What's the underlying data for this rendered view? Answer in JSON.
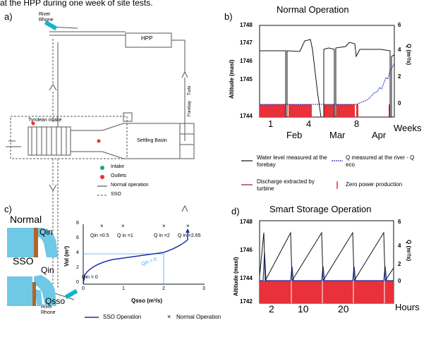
{
  "caption_top": "at the HPP during one week of site tests.",
  "panel_a": {
    "label": "a)",
    "river_top": [
      "River",
      "Rhone"
    ],
    "river_bottom": [
      "River",
      "Rhone"
    ],
    "hpp": "HPP",
    "tyrolean": "Tyrolean intake",
    "settling": "Settling Basin",
    "forebay": "Forebay",
    "turbi": "Turbi",
    "legend": [
      "Intake",
      "Outlets",
      "Normal operation",
      "SSO"
    ]
  },
  "panel_b": {
    "label": "b)",
    "title": "Normal Operation",
    "ylabel_left": "Altitude (masl)",
    "ylabel_right": "Q (m³/s)",
    "y_ticks_left": [
      "1748",
      "1747",
      "1746",
      "1745",
      "1744"
    ],
    "y_ticks_right": [
      "6",
      "4",
      "2",
      "0"
    ],
    "x_ticks": [
      "1",
      "4",
      "8"
    ],
    "months": [
      "Feb",
      "Mar",
      "Apr"
    ],
    "x_unit": "Weeks"
  },
  "legend_b": {
    "water_level": "Water level measured at the forebay",
    "q_measured": "Q measured at the river - Q eco",
    "discharge": "Discharge extracted by turbine",
    "zero_power": "Zero power production"
  },
  "panel_c": {
    "label": "c)",
    "normal": "Normal",
    "sso": "SSO",
    "qin": "Qin",
    "qin2": "Qin",
    "qsso": "Qsso",
    "ylabel": "Vol (m³)",
    "xlabel": "Qsso (m³/s)",
    "y_ticks": [
      "0",
      "2",
      "4",
      "6",
      "8"
    ],
    "x_ticks": [
      "0",
      "1",
      "2",
      "3"
    ],
    "annotations": [
      "Qin =0.5",
      "Q in =1",
      "Q in =2",
      "Q in =2.65",
      "Qin = 0",
      "Qin = 0"
    ],
    "legend": [
      "SSO Operation",
      "Normal Operation"
    ]
  },
  "panel_d": {
    "label": "d)",
    "title": "Smart Storage Operation",
    "ylabel_left": "Altitude (masl)",
    "ylabel_right": "Q (m³/s)",
    "y_ticks_left": [
      "1748",
      "1746",
      "1744",
      "1742"
    ],
    "y_ticks_right": [
      "6",
      "4",
      "2",
      "0"
    ],
    "x_ticks": [
      "2",
      "10",
      "20"
    ],
    "x_unit": "Hours"
  },
  "colors": {
    "blue": "#1f2fa8",
    "red": "#e8313a",
    "dark": "#111111",
    "gray": "#666666",
    "water": "#6fc8e6",
    "cyan": "#17b4c4",
    "wall": "#b0652a"
  }
}
